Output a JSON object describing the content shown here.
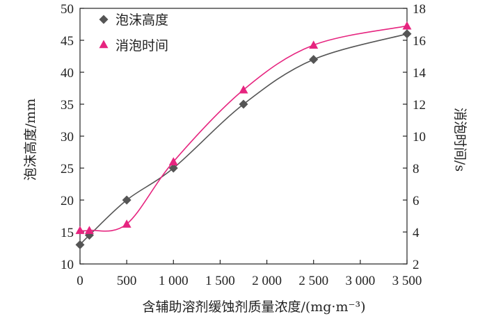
{
  "chart_data": {
    "type": "line",
    "x_label": "含辅助溶剂缓蚀剂质量浓度/(mg·m⁻³)",
    "y_left_label": "泡沫高度/mm",
    "y_right_label": "消泡时间/s",
    "x_ticks": [
      "0",
      "500",
      "1 000",
      "1 500",
      "2 000",
      "2 500",
      "3 000",
      "3 500"
    ],
    "x_tick_values": [
      0,
      500,
      1000,
      1500,
      2000,
      2500,
      3000,
      3500
    ],
    "y_left_ticks": [
      "10",
      "15",
      "20",
      "25",
      "30",
      "35",
      "40",
      "45",
      "50"
    ],
    "y_left_tick_values": [
      10,
      15,
      20,
      25,
      30,
      35,
      40,
      45,
      50
    ],
    "y_right_ticks": [
      "2",
      "4",
      "6",
      "8",
      "10",
      "12",
      "14",
      "16",
      "18"
    ],
    "y_right_tick_values": [
      2,
      4,
      6,
      8,
      10,
      12,
      14,
      16,
      18
    ],
    "xlim": [
      0,
      3500
    ],
    "ylim_left": [
      10,
      50
    ],
    "ylim_right": [
      2,
      18
    ],
    "legend_position": "top-left",
    "series": [
      {
        "name": "泡沫高度",
        "axis": "left",
        "marker": "diamond",
        "color": "#555555",
        "x": [
          0,
          100,
          500,
          1000,
          1750,
          2500,
          3500
        ],
        "y": [
          13,
          14.5,
          20,
          25,
          35,
          42,
          46
        ]
      },
      {
        "name": "消泡时间",
        "axis": "right",
        "marker": "triangle",
        "color": "#e6247f",
        "x": [
          0,
          100,
          500,
          1000,
          1750,
          2500,
          3500
        ],
        "y": [
          4.1,
          4.1,
          4.5,
          8.4,
          12.9,
          15.7,
          16.9
        ]
      }
    ]
  }
}
